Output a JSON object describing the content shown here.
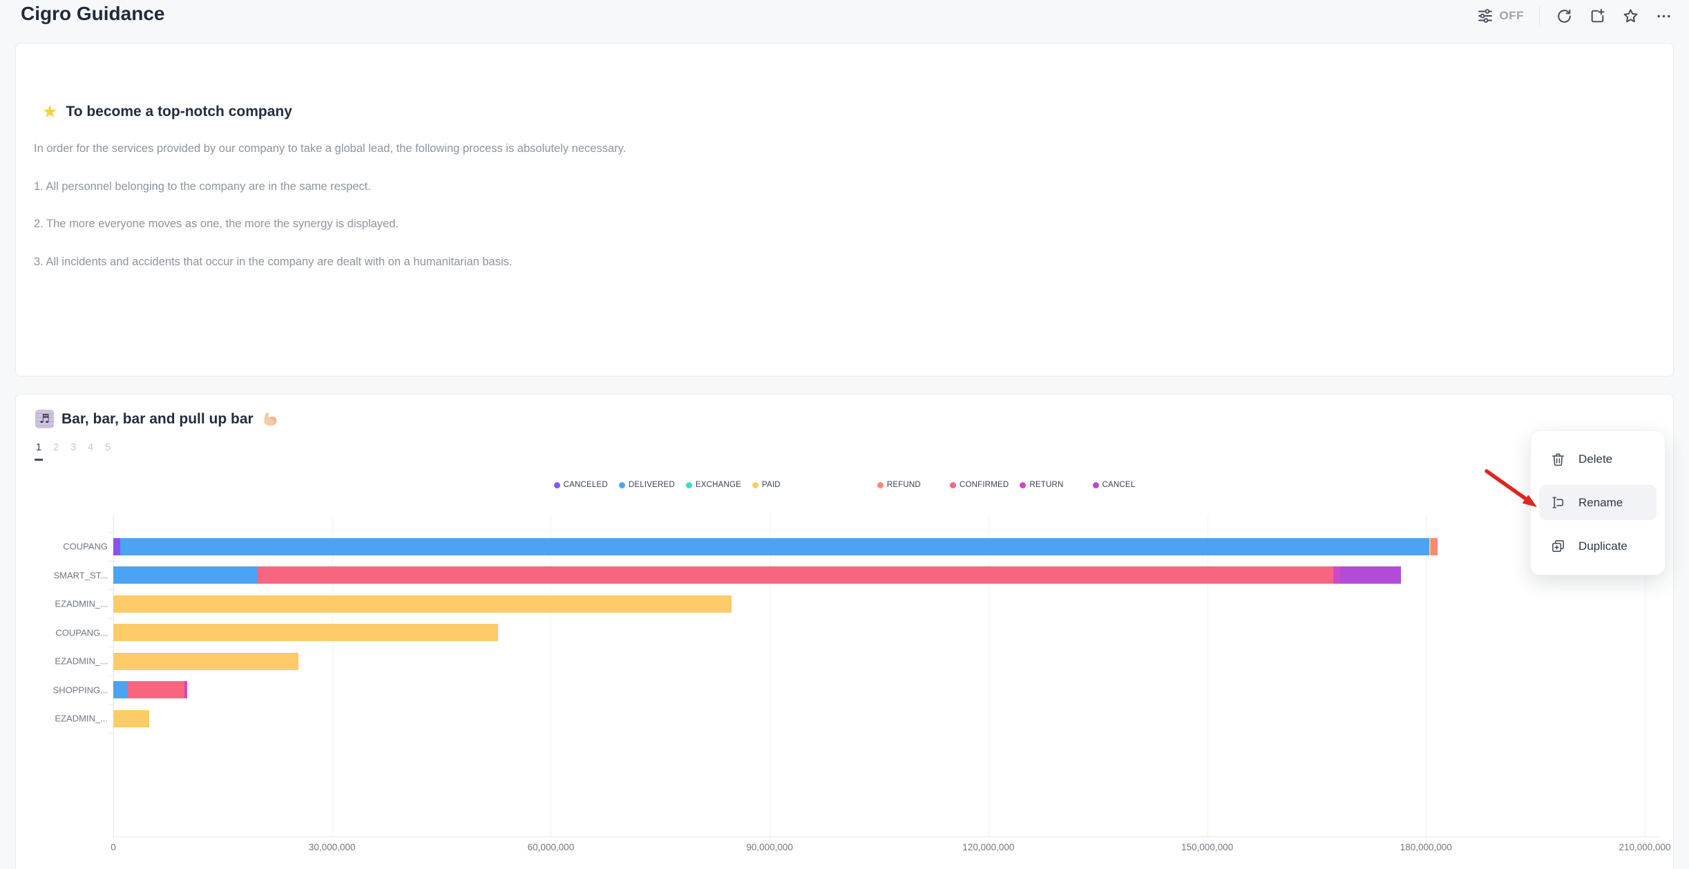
{
  "page": {
    "title": "Cigro Guidance"
  },
  "toolbar": {
    "filter_label": "OFF",
    "icons": [
      "filter-sliders",
      "refresh",
      "add-widget",
      "star",
      "more"
    ]
  },
  "note_card": {
    "icon": "star-emoji",
    "title": "To become a top-notch company",
    "paragraphs": [
      "In order for the services provided by our company to take a global lead, the following process is absolutely necessary.",
      "1. All personnel belonging to the company are in the same respect.",
      "2. The more everyone moves as one, the more the synergy is displayed.",
      "3. All incidents and accidents that occur in the company are dealt with on a humanitarian basis."
    ]
  },
  "chart_card": {
    "icon_left": "musical-score-emoji",
    "title": "Bar, bar, bar and pull up bar",
    "icon_right": "flexed-biceps-emoji",
    "pagination": [
      "1",
      "2",
      "3",
      "4",
      "5"
    ],
    "active_page": "1"
  },
  "context_menu": {
    "items": [
      {
        "label": "Delete",
        "icon": "trash-icon",
        "highlighted": false
      },
      {
        "label": "Rename",
        "icon": "rename-icon",
        "highlighted": true
      },
      {
        "label": "Duplicate",
        "icon": "duplicate-icon",
        "highlighted": false
      }
    ],
    "annotation": "red-arrow-pointing-to-rename"
  },
  "chart_data": {
    "type": "bar",
    "orientation": "horizontal",
    "stacked": true,
    "title": "Bar, bar, bar and pull up bar",
    "xlabel": "",
    "ylabel": "",
    "xlim": [
      0,
      210000000
    ],
    "grid": true,
    "legend_position": "top-center",
    "x_ticks": [
      "0",
      "30,000,000",
      "60,000,000",
      "90,000,000",
      "120,000,000",
      "150,000,000",
      "180,000,000",
      "210,000,000"
    ],
    "x_tick_values": [
      0,
      30000000,
      60000000,
      90000000,
      120000000,
      150000000,
      180000000,
      210000000
    ],
    "categories": [
      "COUPANG",
      "SMART_ST...",
      "EZADMIN_...",
      "COUPANG...",
      "EZADMIN_...",
      "SHOPPING...",
      "EZADMIN_..."
    ],
    "series": [
      {
        "name": "CANCELED",
        "color": "#8A53F1",
        "values": [
          900000,
          0,
          0,
          0,
          0,
          0,
          0
        ]
      },
      {
        "name": "DELIVERED",
        "color": "#4BA3F3",
        "values": [
          179500000,
          19800000,
          0,
          0,
          0,
          2000000,
          0
        ]
      },
      {
        "name": "EXCHANGE",
        "color": "#3CDECB",
        "values": [
          0,
          0,
          0,
          0,
          0,
          0,
          0
        ]
      },
      {
        "name": "PAID",
        "color": "#FDCB67",
        "values": [
          200000,
          0,
          84800000,
          52800000,
          25400000,
          0,
          4900000
        ]
      },
      {
        "name": "REFUND",
        "color": "#FB8774",
        "values": [
          1000000,
          0,
          0,
          0,
          0,
          0,
          0
        ]
      },
      {
        "name": "CONFIRMED",
        "color": "#F8657F",
        "values": [
          0,
          147500000,
          0,
          0,
          0,
          7800000,
          0
        ]
      },
      {
        "name": "RETURN",
        "color": "#CE49C6",
        "values": [
          0,
          900000,
          0,
          0,
          0,
          300000,
          0
        ]
      },
      {
        "name": "CANCEL",
        "color": "#B24CD7",
        "values": [
          0,
          8400000,
          0,
          0,
          0,
          0,
          0
        ]
      }
    ]
  }
}
